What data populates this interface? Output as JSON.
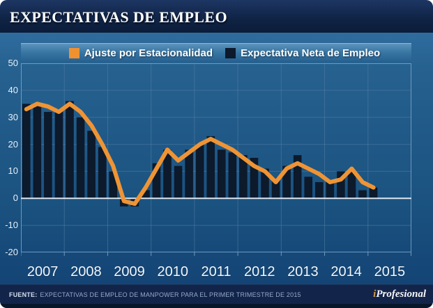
{
  "header": {
    "title": "EXPECTATIVAS DE EMPLEO"
  },
  "legend": [
    {
      "label": "Ajuste por Estacionalidad",
      "color": "#f09130"
    },
    {
      "label": "Expectativa Neta de Empleo",
      "color": "#0c1a2c"
    }
  ],
  "chart_data": {
    "type": "bar",
    "x_unit": "quarters",
    "categories": [
      "2007",
      "2008",
      "2009",
      "2010",
      "2011",
      "2012",
      "2013",
      "2014",
      "2015"
    ],
    "series": [
      {
        "name": "Expectativa Neta de Empleo",
        "type": "bar",
        "color": "#0c1a2c",
        "values": [
          35,
          35,
          32,
          33,
          36,
          30,
          25,
          19,
          10,
          -3,
          -3,
          3,
          13,
          18,
          12,
          18,
          20,
          23,
          18,
          17,
          16,
          15,
          11,
          7,
          12,
          16,
          8,
          6,
          6,
          10,
          10,
          3,
          4
        ]
      },
      {
        "name": "Ajuste por Estacionalidad",
        "type": "line",
        "color": "#ef9434",
        "values": [
          33,
          35,
          34,
          32,
          35,
          32,
          27,
          20,
          12,
          -1,
          -2,
          4,
          11,
          18,
          14,
          17,
          20,
          22,
          20,
          18,
          15,
          12,
          10,
          6,
          11,
          13,
          11,
          9,
          6,
          7,
          11,
          6,
          4
        ]
      }
    ],
    "ylim": [
      -20,
      50
    ],
    "yticks": [
      50,
      40,
      30,
      20,
      10,
      0,
      -10,
      -20
    ],
    "grid": true,
    "legend_position": "top",
    "colors": {
      "plot_background": "#1d5585",
      "gridline": "#557fa5",
      "zero_line": "#e9eff5",
      "plot_border": "#7ea6c8"
    }
  },
  "footer": {
    "source_label": "FUENTE:",
    "source_text": "EXPECTATIVAS DE EMPLEO DE MANPOWER PARA EL PRIMER TRIMESTRE DE 2015",
    "brand_i": "i",
    "brand_rest": "Profesional"
  }
}
